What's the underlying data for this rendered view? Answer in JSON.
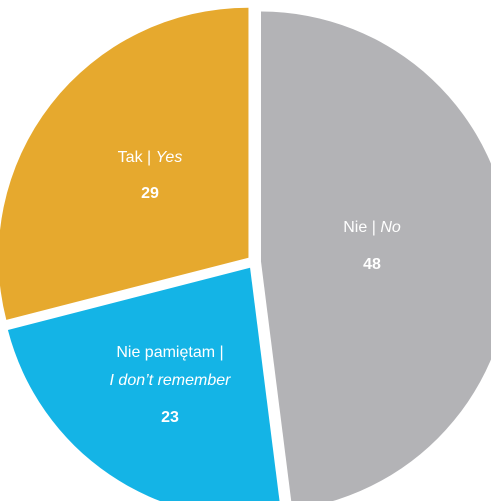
{
  "chart_data": {
    "type": "pie",
    "slices": [
      {
        "key": "no",
        "label": "Nie",
        "label_en": "No",
        "value": 48,
        "color": "#b3b3b6"
      },
      {
        "key": "dont_remember",
        "label": "Nie pamiętam",
        "label_en": "I don’t remember",
        "value": 23,
        "color": "#14b4e6"
      },
      {
        "key": "yes",
        "label": "Tak",
        "label_en": "Yes",
        "value": 29,
        "color": "#e6a92e"
      }
    ],
    "start": "12 o'clock",
    "direction": "clockwise",
    "exploded": true,
    "legend": "none"
  },
  "labels": {
    "separator": " |"
  }
}
